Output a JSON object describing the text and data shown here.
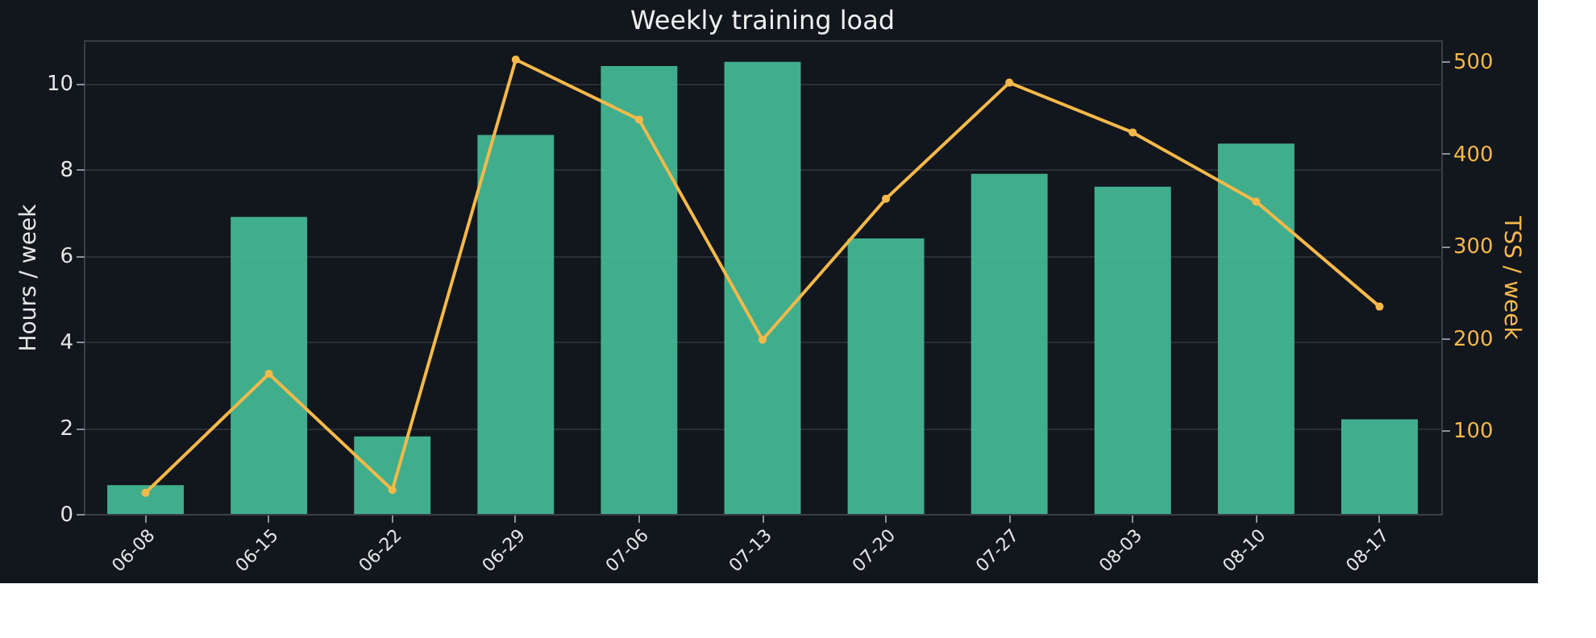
{
  "chart_data": {
    "type": "bar",
    "title": "Weekly training load",
    "ylabel": "Hours / week",
    "y2label": "TSS / week",
    "categories": [
      "06-08",
      "06-15",
      "06-22",
      "06-29",
      "07-06",
      "07-13",
      "07-20",
      "07-27",
      "08-03",
      "08-10",
      "08-17"
    ],
    "series": [
      {
        "color": "#43b692",
        "values": [
          0.67,
          6.9,
          1.8,
          8.8,
          10.4,
          10.5,
          6.4,
          7.9,
          7.6,
          8.6,
          2.2
        ]
      },
      {
        "type": "line",
        "axis": "y2",
        "color": "#f5b94a",
        "marker": "circle",
        "line_style": "solid",
        "values": [
          32,
          161,
          35,
          502,
          437,
          198,
          351,
          477,
          423,
          348,
          234
        ]
      }
    ],
    "ylim": [
      0,
      11
    ],
    "yticks": [
      0,
      2,
      4,
      6,
      8,
      10
    ],
    "y2lim": [
      9,
      523
    ],
    "y2ticks": [
      100,
      200,
      300,
      400,
      500
    ],
    "grid": "y"
  }
}
